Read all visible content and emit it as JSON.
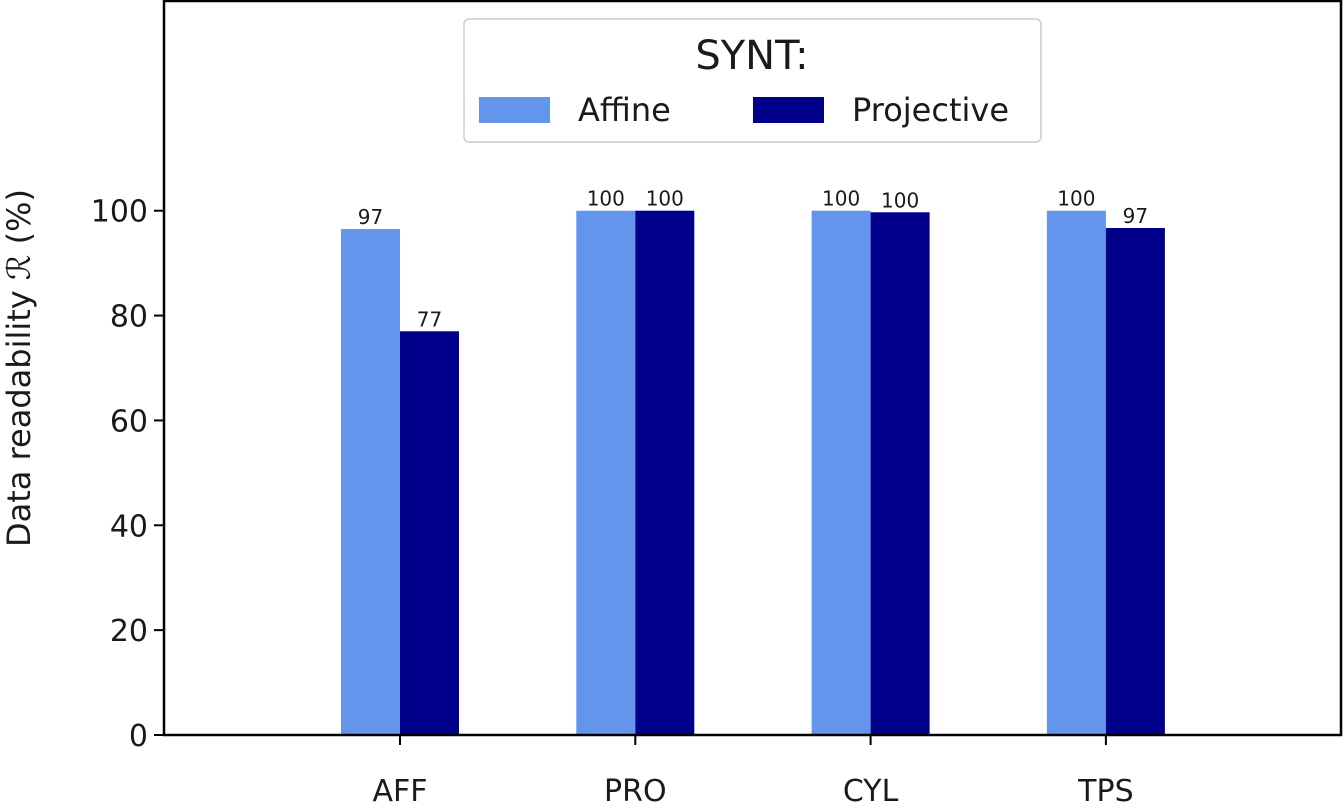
{
  "chart_data": {
    "type": "bar",
    "categories": [
      "AFF",
      "PRO",
      "CYL",
      "TPS"
    ],
    "series": [
      {
        "name": "Affine",
        "color": "#6495ED",
        "values": [
          96.5,
          100,
          100,
          100
        ],
        "labels": [
          "97",
          "100",
          "100",
          "100"
        ]
      },
      {
        "name": "Projective",
        "color": "#00008B",
        "values": [
          77,
          100,
          99.7,
          96.7
        ],
        "labels": [
          "77",
          "100",
          "100",
          "97"
        ]
      }
    ],
    "ylabel": "Data readability ℛ (%)",
    "yticks": [
      0,
      20,
      40,
      60,
      80,
      100
    ],
    "ylim": [
      0,
      140
    ],
    "legend": {
      "title": "SYNT:",
      "placement": "top-center"
    },
    "grid": false
  }
}
